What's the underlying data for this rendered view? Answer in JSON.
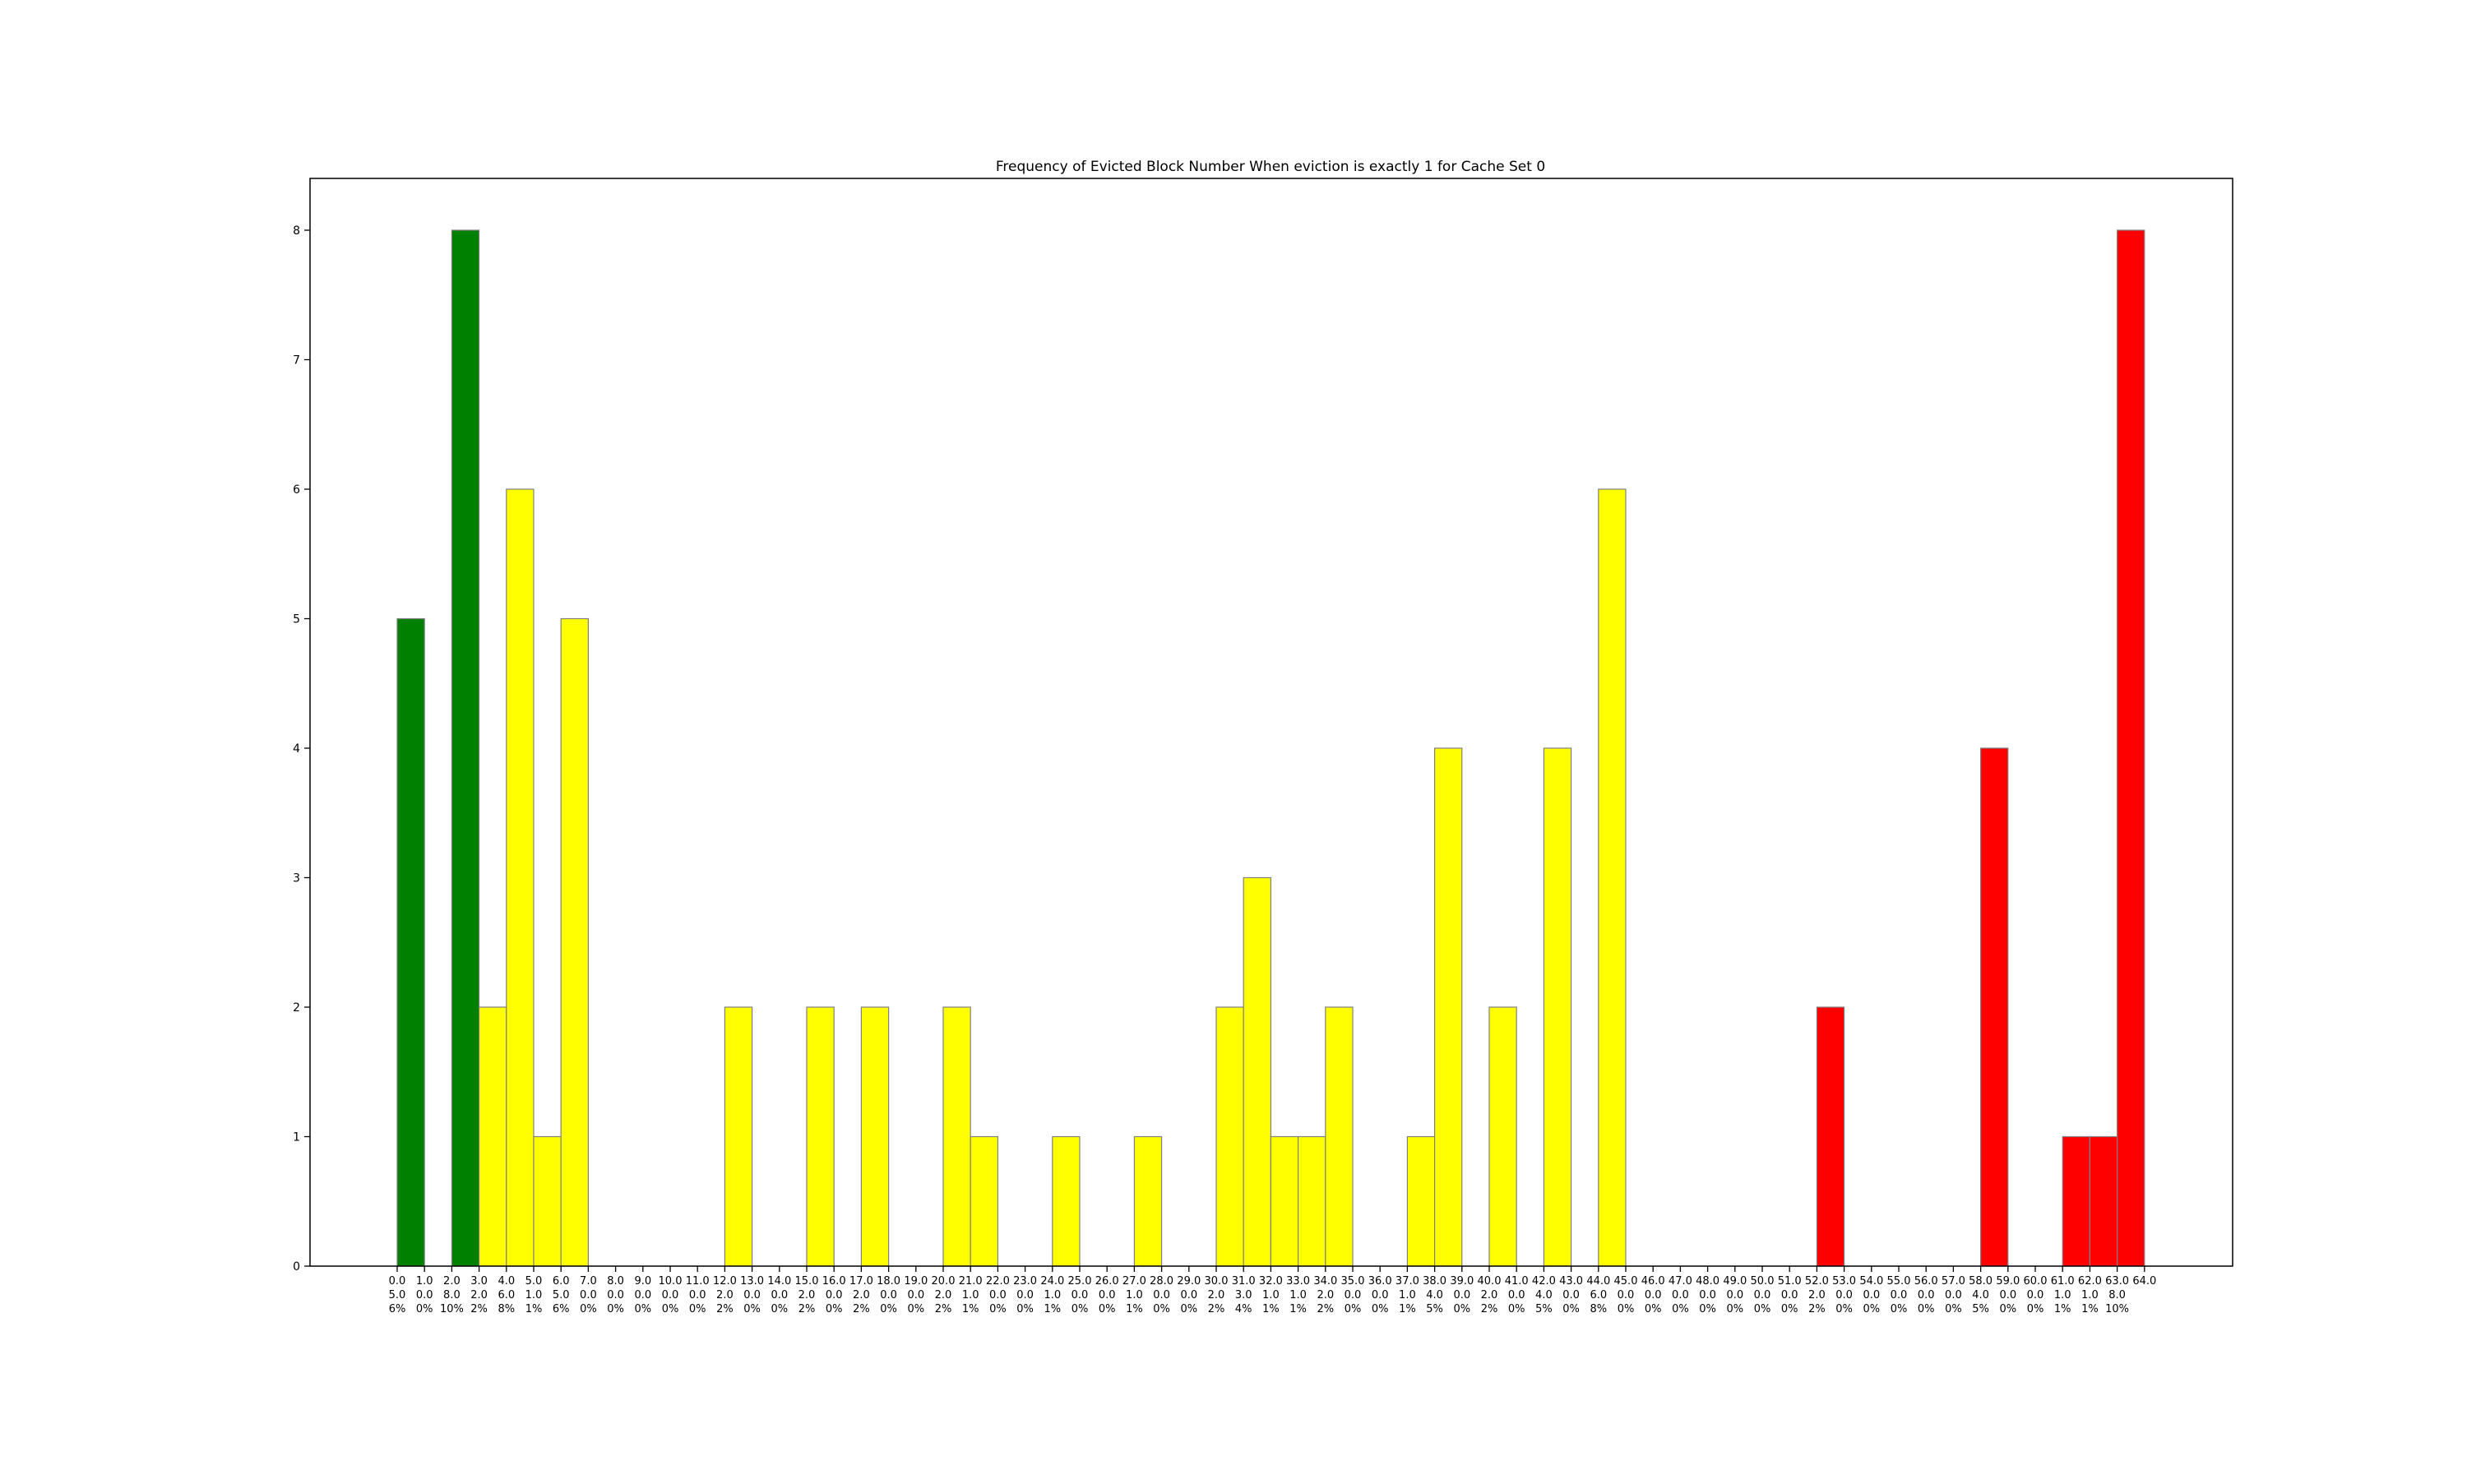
{
  "chart_data": {
    "type": "bar",
    "title": "Frequency of Evicted Block Number When eviction is exactly 1 for Cache Set 0",
    "xlabel": "",
    "ylabel": "",
    "ylim": [
      0,
      8.4
    ],
    "yticks": [
      0,
      1,
      2,
      3,
      4,
      5,
      6,
      7,
      8
    ],
    "grid": false,
    "legend": "none",
    "colors": {
      "green": "#008000",
      "yellow": "#ffff00",
      "red": "#ff0000",
      "edge": "#808080"
    },
    "bars": [
      {
        "x": 0,
        "value": 5,
        "color": "green"
      },
      {
        "x": 2,
        "value": 8,
        "color": "green"
      },
      {
        "x": 3,
        "value": 2,
        "color": "yellow"
      },
      {
        "x": 4,
        "value": 6,
        "color": "yellow"
      },
      {
        "x": 5,
        "value": 1,
        "color": "yellow"
      },
      {
        "x": 6,
        "value": 5,
        "color": "yellow"
      },
      {
        "x": 12,
        "value": 2,
        "color": "yellow"
      },
      {
        "x": 15,
        "value": 2,
        "color": "yellow"
      },
      {
        "x": 17,
        "value": 2,
        "color": "yellow"
      },
      {
        "x": 20,
        "value": 2,
        "color": "yellow"
      },
      {
        "x": 21,
        "value": 1,
        "color": "yellow"
      },
      {
        "x": 24,
        "value": 1,
        "color": "yellow"
      },
      {
        "x": 27,
        "value": 1,
        "color": "yellow"
      },
      {
        "x": 30,
        "value": 2,
        "color": "yellow"
      },
      {
        "x": 31,
        "value": 3,
        "color": "yellow"
      },
      {
        "x": 32,
        "value": 1,
        "color": "yellow"
      },
      {
        "x": 33,
        "value": 1,
        "color": "yellow"
      },
      {
        "x": 34,
        "value": 2,
        "color": "yellow"
      },
      {
        "x": 37,
        "value": 1,
        "color": "yellow"
      },
      {
        "x": 38,
        "value": 4,
        "color": "yellow"
      },
      {
        "x": 40,
        "value": 2,
        "color": "yellow"
      },
      {
        "x": 42,
        "value": 4,
        "color": "yellow"
      },
      {
        "x": 44,
        "value": 6,
        "color": "yellow"
      },
      {
        "x": 52,
        "value": 2,
        "color": "red"
      },
      {
        "x": 58,
        "value": 4,
        "color": "red"
      },
      {
        "x": 61,
        "value": 1,
        "color": "red"
      },
      {
        "x": 62,
        "value": 1,
        "color": "red"
      },
      {
        "x": 63,
        "value": 8,
        "color": "red"
      }
    ],
    "xticks": [
      {
        "l1": "0.0",
        "l2": "5.0",
        "l3": "6%"
      },
      {
        "l1": "1.0",
        "l2": "0.0",
        "l3": "0%"
      },
      {
        "l1": "2.0",
        "l2": "8.0",
        "l3": "10%"
      },
      {
        "l1": "3.0",
        "l2": "2.0",
        "l3": "2%"
      },
      {
        "l1": "4.0",
        "l2": "6.0",
        "l3": "8%"
      },
      {
        "l1": "5.0",
        "l2": "1.0",
        "l3": "1%"
      },
      {
        "l1": "6.0",
        "l2": "5.0",
        "l3": "6%"
      },
      {
        "l1": "7.0",
        "l2": "0.0",
        "l3": "0%"
      },
      {
        "l1": "8.0",
        "l2": "0.0",
        "l3": "0%"
      },
      {
        "l1": "9.0",
        "l2": "0.0",
        "l3": "0%"
      },
      {
        "l1": "10.0",
        "l2": "0.0",
        "l3": "0%"
      },
      {
        "l1": "11.0",
        "l2": "0.0",
        "l3": "0%"
      },
      {
        "l1": "12.0",
        "l2": "2.0",
        "l3": "2%"
      },
      {
        "l1": "13.0",
        "l2": "0.0",
        "l3": "0%"
      },
      {
        "l1": "14.0",
        "l2": "0.0",
        "l3": "0%"
      },
      {
        "l1": "15.0",
        "l2": "2.0",
        "l3": "2%"
      },
      {
        "l1": "16.0",
        "l2": "0.0",
        "l3": "0%"
      },
      {
        "l1": "17.0",
        "l2": "2.0",
        "l3": "2%"
      },
      {
        "l1": "18.0",
        "l2": "0.0",
        "l3": "0%"
      },
      {
        "l1": "19.0",
        "l2": "0.0",
        "l3": "0%"
      },
      {
        "l1": "20.0",
        "l2": "2.0",
        "l3": "2%"
      },
      {
        "l1": "21.0",
        "l2": "1.0",
        "l3": "1%"
      },
      {
        "l1": "22.0",
        "l2": "0.0",
        "l3": "0%"
      },
      {
        "l1": "23.0",
        "l2": "0.0",
        "l3": "0%"
      },
      {
        "l1": "24.0",
        "l2": "1.0",
        "l3": "1%"
      },
      {
        "l1": "25.0",
        "l2": "0.0",
        "l3": "0%"
      },
      {
        "l1": "26.0",
        "l2": "0.0",
        "l3": "0%"
      },
      {
        "l1": "27.0",
        "l2": "1.0",
        "l3": "1%"
      },
      {
        "l1": "28.0",
        "l2": "0.0",
        "l3": "0%"
      },
      {
        "l1": "29.0",
        "l2": "0.0",
        "l3": "0%"
      },
      {
        "l1": "30.0",
        "l2": "2.0",
        "l3": "2%"
      },
      {
        "l1": "31.0",
        "l2": "3.0",
        "l3": "4%"
      },
      {
        "l1": "32.0",
        "l2": "1.0",
        "l3": "1%"
      },
      {
        "l1": "33.0",
        "l2": "1.0",
        "l3": "1%"
      },
      {
        "l1": "34.0",
        "l2": "2.0",
        "l3": "2%"
      },
      {
        "l1": "35.0",
        "l2": "0.0",
        "l3": "0%"
      },
      {
        "l1": "36.0",
        "l2": "0.0",
        "l3": "0%"
      },
      {
        "l1": "37.0",
        "l2": "1.0",
        "l3": "1%"
      },
      {
        "l1": "38.0",
        "l2": "4.0",
        "l3": "5%"
      },
      {
        "l1": "39.0",
        "l2": "0.0",
        "l3": "0%"
      },
      {
        "l1": "40.0",
        "l2": "2.0",
        "l3": "2%"
      },
      {
        "l1": "41.0",
        "l2": "0.0",
        "l3": "0%"
      },
      {
        "l1": "42.0",
        "l2": "4.0",
        "l3": "5%"
      },
      {
        "l1": "43.0",
        "l2": "0.0",
        "l3": "0%"
      },
      {
        "l1": "44.0",
        "l2": "6.0",
        "l3": "8%"
      },
      {
        "l1": "45.0",
        "l2": "0.0",
        "l3": "0%"
      },
      {
        "l1": "46.0",
        "l2": "0.0",
        "l3": "0%"
      },
      {
        "l1": "47.0",
        "l2": "0.0",
        "l3": "0%"
      },
      {
        "l1": "48.0",
        "l2": "0.0",
        "l3": "0%"
      },
      {
        "l1": "49.0",
        "l2": "0.0",
        "l3": "0%"
      },
      {
        "l1": "50.0",
        "l2": "0.0",
        "l3": "0%"
      },
      {
        "l1": "51.0",
        "l2": "0.0",
        "l3": "0%"
      },
      {
        "l1": "52.0",
        "l2": "2.0",
        "l3": "2%"
      },
      {
        "l1": "53.0",
        "l2": "0.0",
        "l3": "0%"
      },
      {
        "l1": "54.0",
        "l2": "0.0",
        "l3": "0%"
      },
      {
        "l1": "55.0",
        "l2": "0.0",
        "l3": "0%"
      },
      {
        "l1": "56.0",
        "l2": "0.0",
        "l3": "0%"
      },
      {
        "l1": "57.0",
        "l2": "0.0",
        "l3": "0%"
      },
      {
        "l1": "58.0",
        "l2": "4.0",
        "l3": "5%"
      },
      {
        "l1": "59.0",
        "l2": "0.0",
        "l3": "0%"
      },
      {
        "l1": "60.0",
        "l2": "0.0",
        "l3": "0%"
      },
      {
        "l1": "61.0",
        "l2": "1.0",
        "l3": "1%"
      },
      {
        "l1": "62.0",
        "l2": "1.0",
        "l3": "1%"
      },
      {
        "l1": "63.0",
        "l2": "8.0",
        "l3": "10%"
      },
      {
        "l1": "64.0",
        "l2": "",
        "l3": ""
      }
    ]
  }
}
